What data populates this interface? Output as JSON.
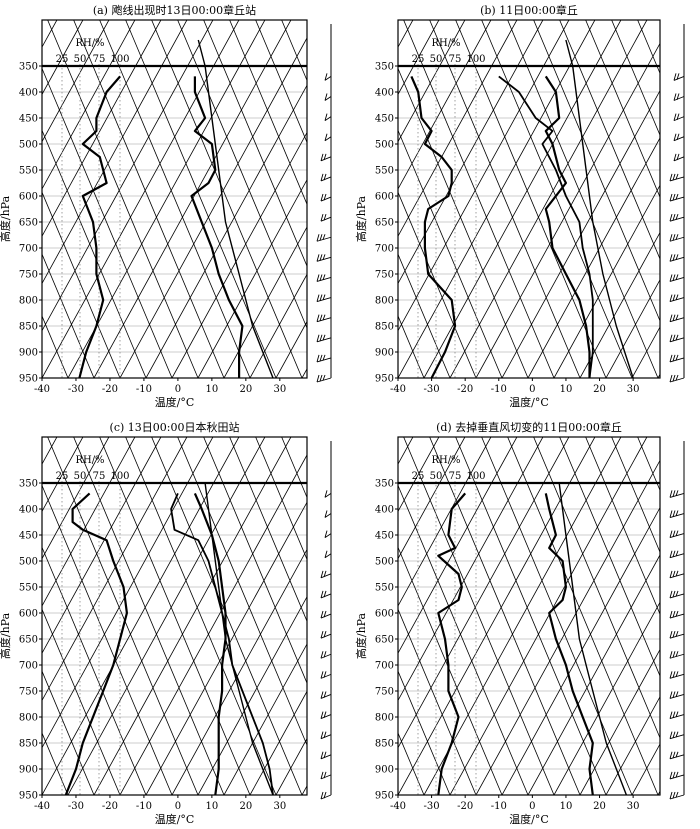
{
  "chart_data": [
    {
      "type": "line",
      "title": "(a) 飑线出现时13日00:00章丘站",
      "temperature": [
        [
          5,
          370
        ],
        [
          5,
          400
        ],
        [
          8,
          450
        ],
        [
          5,
          475
        ],
        [
          10,
          500
        ],
        [
          11,
          550
        ],
        [
          9,
          575
        ],
        [
          4,
          600
        ],
        [
          7,
          650
        ],
        [
          10,
          700
        ],
        [
          12,
          750
        ],
        [
          15,
          800
        ],
        [
          19,
          850
        ],
        [
          18,
          900
        ],
        [
          18,
          950
        ]
      ],
      "dewpoint": [
        [
          -17,
          370
        ],
        [
          -21,
          400
        ],
        [
          -24,
          450
        ],
        [
          -24,
          475
        ],
        [
          -28,
          500
        ],
        [
          -23,
          525
        ],
        [
          -22,
          550
        ],
        [
          -21,
          575
        ],
        [
          -28,
          600
        ],
        [
          -25,
          650
        ],
        [
          -24,
          700
        ],
        [
          -24,
          750
        ],
        [
          -22,
          800
        ],
        [
          -24,
          850
        ],
        [
          -27,
          900
        ],
        [
          -29,
          950
        ]
      ],
      "parcel": [
        [
          28,
          950
        ],
        [
          22,
          850
        ],
        [
          18,
          750
        ],
        [
          14,
          650
        ],
        [
          12,
          550
        ],
        [
          10,
          450
        ],
        [
          8,
          350
        ],
        [
          6,
          300
        ]
      ],
      "wind_profile": [
        "weak",
        "weak",
        "weak",
        "weak",
        "medium",
        "medium",
        "medium",
        "medium",
        "strong",
        "strong",
        "strong",
        "strong",
        "strong",
        "strong",
        "strong",
        "strong"
      ]
    },
    {
      "type": "line",
      "title": "(b) 11日00:00章丘",
      "temperature": [
        [
          4,
          370
        ],
        [
          7,
          400
        ],
        [
          8,
          450
        ],
        [
          4,
          475
        ],
        [
          6,
          500
        ],
        [
          8,
          550
        ],
        [
          10,
          575
        ],
        [
          7,
          600
        ],
        [
          4,
          625
        ],
        [
          5,
          650
        ],
        [
          6,
          700
        ],
        [
          10,
          750
        ],
        [
          14,
          800
        ],
        [
          16,
          850
        ],
        [
          17,
          900
        ],
        [
          17,
          950
        ]
      ],
      "dewpoint": [
        [
          -36,
          370
        ],
        [
          -34,
          400
        ],
        [
          -33,
          450
        ],
        [
          -30,
          475
        ],
        [
          -32,
          500
        ],
        [
          -27,
          525
        ],
        [
          -24,
          550
        ],
        [
          -24,
          575
        ],
        [
          -25,
          600
        ],
        [
          -31,
          625
        ],
        [
          -32,
          650
        ],
        [
          -32,
          700
        ],
        [
          -31,
          750
        ],
        [
          -24,
          800
        ],
        [
          -23,
          850
        ],
        [
          -26,
          900
        ],
        [
          -30,
          950
        ]
      ],
      "moist_line": [
        [
          -10,
          370
        ],
        [
          -4,
          400
        ],
        [
          1,
          450
        ],
        [
          6,
          475
        ],
        [
          3,
          500
        ],
        [
          7,
          550
        ],
        [
          10,
          600
        ],
        [
          14,
          650
        ],
        [
          15,
          700
        ],
        [
          17,
          750
        ],
        [
          18,
          800
        ],
        [
          18,
          850
        ],
        [
          18,
          900
        ],
        [
          17,
          950
        ]
      ],
      "parcel": [
        [
          30,
          950
        ],
        [
          25,
          850
        ],
        [
          21,
          750
        ],
        [
          18,
          650
        ],
        [
          16,
          550
        ],
        [
          14,
          450
        ],
        [
          12,
          350
        ],
        [
          10,
          300
        ]
      ],
      "wind_profile": [
        "medium",
        "medium",
        "medium",
        "medium",
        "medium",
        "strong",
        "strong",
        "strong",
        "strong",
        "strong",
        "strong",
        "strong",
        "strong",
        "strong",
        "strong",
        "strong"
      ]
    },
    {
      "type": "line",
      "title": "(c) 13日00:00日本秋田站",
      "temperature": [
        [
          5,
          370
        ],
        [
          7,
          400
        ],
        [
          10,
          450
        ],
        [
          12,
          500
        ],
        [
          13,
          550
        ],
        [
          14,
          600
        ],
        [
          14,
          650
        ],
        [
          13,
          700
        ],
        [
          13,
          750
        ],
        [
          12,
          800
        ],
        [
          12,
          850
        ],
        [
          12,
          900
        ],
        [
          11,
          950
        ]
      ],
      "dewpoint": [
        [
          -26,
          370
        ],
        [
          -31,
          400
        ],
        [
          -31,
          425
        ],
        [
          -28,
          440
        ],
        [
          -21,
          460
        ],
        [
          -19,
          500
        ],
        [
          -16,
          550
        ],
        [
          -15,
          600
        ],
        [
          -17,
          650
        ],
        [
          -19,
          700
        ],
        [
          -22,
          750
        ],
        [
          -25,
          800
        ],
        [
          -28,
          850
        ],
        [
          -30,
          900
        ],
        [
          -33,
          950
        ]
      ],
      "second_line": [
        [
          0,
          370
        ],
        [
          -2,
          400
        ],
        [
          -1,
          440
        ],
        [
          6,
          460
        ],
        [
          9,
          500
        ],
        [
          11,
          550
        ],
        [
          13,
          600
        ],
        [
          15,
          650
        ],
        [
          16,
          700
        ],
        [
          19,
          750
        ],
        [
          22,
          800
        ],
        [
          25,
          850
        ],
        [
          27,
          900
        ],
        [
          28,
          950
        ]
      ],
      "parcel": [
        [
          28,
          950
        ],
        [
          22,
          850
        ],
        [
          18,
          750
        ],
        [
          14,
          650
        ],
        [
          12,
          550
        ],
        [
          10,
          450
        ],
        [
          8,
          350
        ]
      ],
      "wind_profile": [
        "weak",
        "weak",
        "weak",
        "weak",
        "medium",
        "medium",
        "medium",
        "medium",
        "medium",
        "medium",
        "medium",
        "medium",
        "medium",
        "medium",
        "medium",
        "medium"
      ]
    },
    {
      "type": "line",
      "title": "(d) 去掉垂直风切变的11日00:00章丘",
      "temperature": [
        [
          4,
          370
        ],
        [
          5,
          400
        ],
        [
          7,
          450
        ],
        [
          5,
          475
        ],
        [
          9,
          500
        ],
        [
          10,
          550
        ],
        [
          9,
          575
        ],
        [
          5,
          600
        ],
        [
          7,
          650
        ],
        [
          10,
          700
        ],
        [
          12,
          750
        ],
        [
          15,
          800
        ],
        [
          18,
          850
        ],
        [
          17,
          900
        ],
        [
          18,
          950
        ]
      ],
      "dewpoint": [
        [
          -20,
          370
        ],
        [
          -24,
          400
        ],
        [
          -25,
          450
        ],
        [
          -23,
          475
        ],
        [
          -28,
          490
        ],
        [
          -22,
          525
        ],
        [
          -21,
          550
        ],
        [
          -22,
          575
        ],
        [
          -28,
          600
        ],
        [
          -26,
          650
        ],
        [
          -25,
          700
        ],
        [
          -25,
          750
        ],
        [
          -22,
          800
        ],
        [
          -24,
          850
        ],
        [
          -27,
          900
        ],
        [
          -28,
          950
        ]
      ],
      "parcel": [
        [
          28,
          950
        ],
        [
          22,
          850
        ],
        [
          18,
          750
        ],
        [
          14,
          650
        ],
        [
          12,
          550
        ],
        [
          10,
          450
        ],
        [
          8,
          350
        ]
      ],
      "wind_profile": [
        "strong",
        "strong",
        "strong",
        "strong",
        "strong",
        "strong",
        "strong",
        "strong",
        "strong",
        "strong",
        "strong",
        "strong",
        "strong",
        "strong",
        "strong",
        "strong"
      ]
    }
  ],
  "axes": {
    "xlabel": "温度/°C",
    "ylabel": "高度/hPa",
    "rh_label": "RH/%",
    "rh_ticks": [
      "25",
      "50",
      "75",
      "100"
    ],
    "xticks": [
      -40,
      -30,
      -20,
      -10,
      0,
      10,
      20,
      30
    ],
    "yticks": [
      350,
      400,
      450,
      500,
      550,
      600,
      650,
      700,
      750,
      800,
      850,
      900,
      950
    ],
    "xlim": [
      -40,
      38
    ],
    "ylim": [
      350,
      950
    ]
  }
}
